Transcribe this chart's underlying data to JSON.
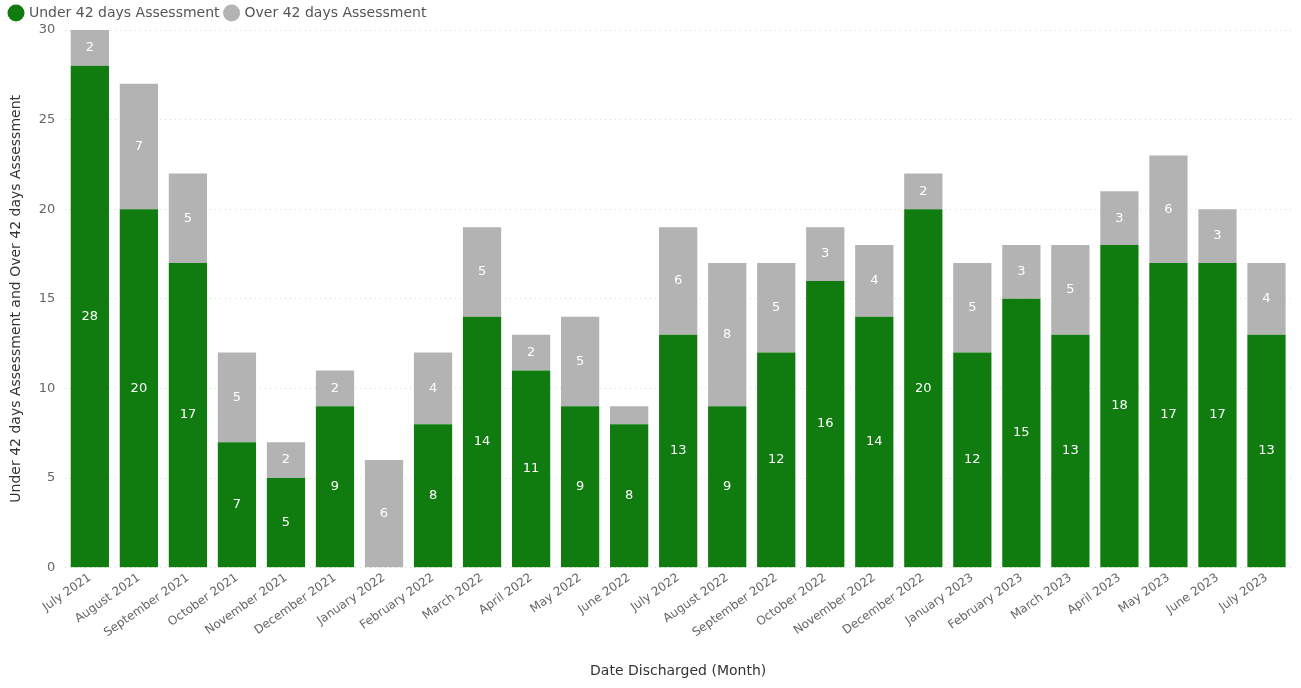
{
  "chart_data": {
    "type": "bar",
    "stacked": true,
    "xlabel": "Date Discharged (Month)",
    "ylabel": "Under 42 days Assessment and Over 42 days Assessment",
    "categories": [
      "July 2021",
      "August 2021",
      "September 2021",
      "October 2021",
      "November 2021",
      "December 2021",
      "January 2022",
      "February 2022",
      "March 2022",
      "April 2022",
      "May 2022",
      "June 2022",
      "July 2022",
      "August 2022",
      "September 2022",
      "October 2022",
      "November 2022",
      "December 2022",
      "January 2023",
      "February 2023",
      "March 2023",
      "April 2023",
      "May 2023",
      "June 2023",
      "July 2023"
    ],
    "series": [
      {
        "name": "Under 42 days Assessment",
        "color": "#107c10",
        "values": [
          28,
          20,
          17,
          7,
          5,
          9,
          0,
          8,
          14,
          11,
          9,
          8,
          13,
          9,
          12,
          16,
          14,
          20,
          12,
          15,
          13,
          18,
          17,
          17,
          13
        ],
        "value_labels": [
          "28",
          "20",
          "17",
          "7",
          "5",
          "9",
          null,
          "8",
          "14",
          "11",
          "9",
          "8",
          "13",
          "9",
          "12",
          "16",
          "14",
          "20",
          "12",
          "15",
          "13",
          "18",
          "17",
          "17",
          "13"
        ]
      },
      {
        "name": "Over 42 days Assessment",
        "color": "#b3b3b3",
        "values": [
          2,
          7,
          5,
          5,
          2,
          2,
          6,
          4,
          5,
          2,
          5,
          1,
          6,
          8,
          5,
          3,
          4,
          2,
          5,
          3,
          5,
          3,
          6,
          3,
          4
        ],
        "value_labels": [
          "2",
          "7",
          "5",
          "5",
          "2",
          "2",
          "6",
          "4",
          "5",
          "2",
          "5",
          null,
          "6",
          "8",
          "5",
          "3",
          "4",
          "2",
          "5",
          "3",
          "5",
          "3",
          "6",
          "3",
          "4"
        ]
      }
    ],
    "ylim": [
      0,
      30
    ],
    "yticks": [
      0,
      5,
      10,
      15,
      20,
      25,
      30
    ],
    "grid": "y",
    "legend": "top left"
  }
}
